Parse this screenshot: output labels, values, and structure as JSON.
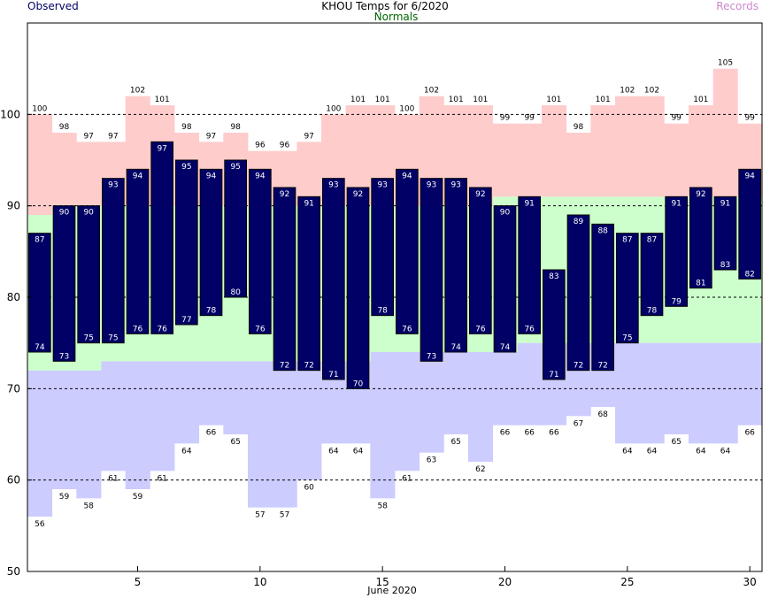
{
  "header": {
    "observed_label": "Observed",
    "title": "KHOU Temps for 6/2020",
    "normals_label": "Normals",
    "records_label": "Records"
  },
  "colors": {
    "observed": "#000066",
    "record_high": "#ffcccc",
    "normal_band": "#ccffcc",
    "record_low": "#ccccff",
    "observed_label_color": "#000066",
    "normals_label_color": "#006600",
    "records_label_color": "#cc88cc"
  },
  "chart_data": {
    "type": "bar",
    "title": "KHOU Temps for 6/2020",
    "xlabel": "June 2020",
    "ylabel": "",
    "xlim": [
      1,
      30
    ],
    "ylim": [
      50,
      110
    ],
    "yticks": [
      50,
      60,
      70,
      80,
      90,
      100
    ],
    "xticks": [
      5,
      10,
      15,
      20,
      25,
      30
    ],
    "grid_y": [
      60,
      70,
      80,
      90,
      100
    ],
    "days": [
      1,
      2,
      3,
      4,
      5,
      6,
      7,
      8,
      9,
      10,
      11,
      12,
      13,
      14,
      15,
      16,
      17,
      18,
      19,
      20,
      21,
      22,
      23,
      24,
      25,
      26,
      27,
      28,
      29,
      30
    ],
    "observed_high": [
      87,
      90,
      90,
      93,
      94,
      97,
      95,
      94,
      95,
      94,
      92,
      91,
      93,
      92,
      93,
      94,
      93,
      93,
      92,
      90,
      91,
      83,
      89,
      88,
      87,
      87,
      91,
      92,
      91,
      94
    ],
    "observed_low": [
      74,
      73,
      75,
      75,
      76,
      76,
      77,
      78,
      80,
      76,
      72,
      72,
      71,
      70,
      78,
      76,
      73,
      74,
      76,
      74,
      76,
      71,
      72,
      72,
      75,
      78,
      79,
      81,
      83,
      82
    ],
    "record_high": [
      100,
      98,
      97,
      97,
      102,
      101,
      98,
      97,
      98,
      96,
      96,
      97,
      100,
      101,
      101,
      100,
      102,
      101,
      101,
      99,
      99,
      101,
      98,
      101,
      102,
      102,
      99,
      101,
      105,
      99
    ],
    "record_low": [
      56,
      59,
      58,
      61,
      59,
      61,
      64,
      66,
      65,
      57,
      57,
      60,
      64,
      64,
      58,
      61,
      63,
      65,
      62,
      66,
      66,
      66,
      67,
      68,
      64,
      64,
      65,
      64,
      64,
      66
    ],
    "normal_high": [
      89,
      90,
      90,
      90,
      90,
      90,
      90,
      90,
      90,
      90,
      90,
      90,
      90,
      90,
      90,
      90,
      90,
      90,
      90,
      91,
      91,
      91,
      91,
      91,
      91,
      91,
      91,
      91,
      91,
      91
    ],
    "normal_low": [
      72,
      72,
      72,
      73,
      73,
      73,
      73,
      73,
      73,
      73,
      73,
      73,
      73,
      73,
      74,
      74,
      74,
      74,
      74,
      74,
      75,
      75,
      75,
      75,
      75,
      75,
      75,
      75,
      75,
      75
    ],
    "series": [
      {
        "name": "Observed"
      },
      {
        "name": "Normals"
      },
      {
        "name": "Records"
      }
    ]
  }
}
